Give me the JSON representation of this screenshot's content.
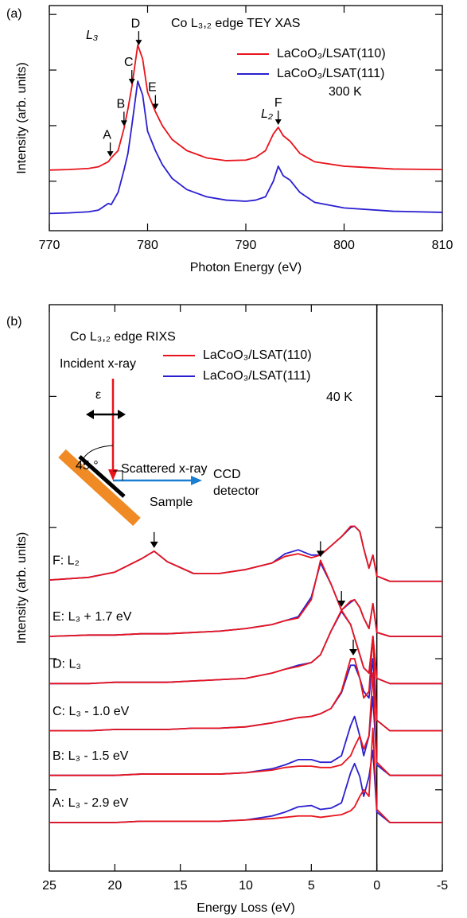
{
  "chart_data": [
    {
      "type": "line",
      "panel_label": "(a)",
      "title": "Co L₃,₂ edge TEY XAS",
      "xlabel": "Photon Energy (eV)",
      "ylabel": "Intensity (arb. units)",
      "note": "300 K",
      "edge_labels": [
        "L₃",
        "L₂"
      ],
      "xlim": [
        770,
        810
      ],
      "xticks": [
        770,
        780,
        790,
        800,
        810
      ],
      "ylim": [
        0.11,
        4.16
      ],
      "yticks": [
        1,
        2,
        3,
        4
      ],
      "x": [
        770,
        772,
        774,
        775,
        776,
        776.3,
        777,
        777.6,
        778,
        778.4,
        779,
        779.5,
        780,
        780.8,
        781.5,
        782.5,
        784,
        786,
        788,
        790,
        791,
        792,
        792.8,
        793.3,
        793.8,
        794.5,
        795.5,
        797,
        800,
        805,
        810
      ],
      "series": [
        {
          "name": "LaCoO₃/LSAT(110)",
          "color": "#e8141c",
          "values": [
            1.2,
            1.21,
            1.23,
            1.26,
            1.35,
            1.42,
            1.55,
            1.95,
            2.3,
            2.7,
            3.45,
            3.2,
            2.6,
            2.25,
            2.0,
            1.75,
            1.55,
            1.42,
            1.37,
            1.38,
            1.43,
            1.55,
            1.85,
            1.97,
            1.82,
            1.72,
            1.5,
            1.35,
            1.27,
            1.22,
            1.21
          ]
        },
        {
          "name": "LaCoO₃/LSAT(111)",
          "color": "#2a1fd0",
          "values": [
            0.42,
            0.43,
            0.45,
            0.48,
            0.6,
            0.58,
            0.8,
            1.2,
            1.5,
            2.0,
            2.8,
            2.55,
            1.9,
            1.55,
            1.3,
            1.05,
            0.85,
            0.72,
            0.66,
            0.64,
            0.66,
            0.72,
            1.0,
            1.27,
            1.1,
            1.02,
            0.8,
            0.62,
            0.52,
            0.46,
            0.44
          ]
        }
      ],
      "annotations": [
        {
          "text": "A",
          "x": 776.2
        },
        {
          "text": "B",
          "x": 777.6
        },
        {
          "text": "C",
          "x": 778.4
        },
        {
          "text": "D",
          "x": 779.1
        },
        {
          "text": "E",
          "x": 780.8
        },
        {
          "text": "F",
          "x": 793.3
        }
      ]
    },
    {
      "type": "line",
      "panel_label": "(b)",
      "title": "Co L₃,₂ edge RIXS",
      "xlabel": "Energy Loss (eV)",
      "ylabel": "Intensity (arb. units)",
      "note": "40 K",
      "inset": {
        "incident": "Incident x-ray",
        "polarization": "ε",
        "angle": "45 °",
        "scattered": "Scattered x-ray",
        "detector": [
          "CCD",
          "detector"
        ],
        "sample": "Sample"
      },
      "xlim": [
        25,
        -5
      ],
      "xticks": [
        25,
        20,
        15,
        10,
        5,
        0,
        -5
      ],
      "ylim": [
        0.38,
        4.7
      ],
      "yticks": [
        1,
        2,
        3,
        4
      ],
      "vline": 0,
      "x": [
        25,
        22,
        20,
        18,
        17,
        16,
        14,
        12,
        10,
        8,
        7,
        6,
        5,
        4.3,
        3.5,
        2.7,
        2,
        1.7,
        1.3,
        1,
        0.6,
        0.3,
        0,
        -1,
        -5
      ],
      "spectrum_labels": [
        "F: L₂",
        "E: L₃ + 1.7 eV",
        "D: L₃",
        "C: L₃ - 1.0 eV",
        "B: L₃ - 1.5 eV",
        "A: L₃ - 2.9 eV"
      ],
      "peak_arrows": [
        17,
        4.3,
        2.7,
        1.8,
        null,
        null
      ],
      "series": [
        {
          "name": "LaCoO₃/LSAT(110)",
          "color": "#e8141c",
          "spectra": [
            [
              2.6,
              2.62,
              2.66,
              2.76,
              2.82,
              2.74,
              2.65,
              2.65,
              2.68,
              2.73,
              2.78,
              2.8,
              2.77,
              2.79,
              2.86,
              2.93,
              3.01,
              3.01,
              2.97,
              2.84,
              2.69,
              2.79,
              2.63,
              2.59,
              2.59
            ],
            [
              2.17,
              2.18,
              2.18,
              2.19,
              2.19,
              2.19,
              2.2,
              2.21,
              2.23,
              2.26,
              2.29,
              2.31,
              2.45,
              2.75,
              2.57,
              2.37,
              2.44,
              2.45,
              2.39,
              2.31,
              2.23,
              2.42,
              2.2,
              2.17,
              2.17
            ],
            [
              1.81,
              1.81,
              1.82,
              1.82,
              1.82,
              1.82,
              1.83,
              1.84,
              1.85,
              1.89,
              1.92,
              1.94,
              1.97,
              2.03,
              2.21,
              2.37,
              2.26,
              2.16,
              2.03,
              1.93,
              1.89,
              2.17,
              1.85,
              1.81,
              1.81
            ],
            [
              1.45,
              1.45,
              1.46,
              1.46,
              1.46,
              1.46,
              1.47,
              1.47,
              1.48,
              1.51,
              1.53,
              1.55,
              1.56,
              1.58,
              1.62,
              1.75,
              2.0,
              2.0,
              1.85,
              1.7,
              1.75,
              2.17,
              1.53,
              1.45,
              1.45
            ],
            [
              1.11,
              1.11,
              1.11,
              1.12,
              1.12,
              1.12,
              1.12,
              1.12,
              1.13,
              1.15,
              1.17,
              1.18,
              1.18,
              1.17,
              1.17,
              1.19,
              1.26,
              1.33,
              1.41,
              1.31,
              1.41,
              1.89,
              1.21,
              1.11,
              1.11
            ],
            [
              0.75,
              0.75,
              0.75,
              0.76,
              0.76,
              0.76,
              0.76,
              0.76,
              0.77,
              0.78,
              0.79,
              0.8,
              0.8,
              0.79,
              0.8,
              0.81,
              0.84,
              0.87,
              0.95,
              1.0,
              0.95,
              1.47,
              0.85,
              0.75,
              0.75
            ]
          ]
        },
        {
          "name": "LaCoO₃/LSAT(111)",
          "color": "#2a1fd0",
          "spectra": [
            [
              2.6,
              2.62,
              2.66,
              2.76,
              2.82,
              2.74,
              2.65,
              2.65,
              2.68,
              2.73,
              2.8,
              2.83,
              2.79,
              2.79,
              2.86,
              2.93,
              3.0,
              3.01,
              2.97,
              2.84,
              2.69,
              2.79,
              2.63,
              2.59,
              2.59
            ],
            [
              2.17,
              2.18,
              2.18,
              2.19,
              2.19,
              2.19,
              2.2,
              2.21,
              2.23,
              2.26,
              2.29,
              2.32,
              2.47,
              2.73,
              2.57,
              2.37,
              2.43,
              2.45,
              2.39,
              2.31,
              2.23,
              2.42,
              2.2,
              2.17,
              2.17
            ],
            [
              1.81,
              1.81,
              1.82,
              1.82,
              1.82,
              1.82,
              1.83,
              1.84,
              1.85,
              1.89,
              1.92,
              1.95,
              1.97,
              2.03,
              2.21,
              2.36,
              2.26,
              2.16,
              2.03,
              1.93,
              1.89,
              2.17,
              1.85,
              1.81,
              1.81
            ],
            [
              1.45,
              1.45,
              1.46,
              1.46,
              1.46,
              1.46,
              1.47,
              1.47,
              1.48,
              1.51,
              1.53,
              1.55,
              1.56,
              1.58,
              1.62,
              1.74,
              1.95,
              1.95,
              1.85,
              1.75,
              1.7,
              2.0,
              1.53,
              1.45,
              1.45
            ],
            [
              1.11,
              1.11,
              1.11,
              1.12,
              1.12,
              1.12,
              1.12,
              1.12,
              1.13,
              1.16,
              1.19,
              1.23,
              1.23,
              1.21,
              1.21,
              1.26,
              1.49,
              1.56,
              1.41,
              1.26,
              1.41,
              1.71,
              1.19,
              1.11,
              1.11
            ],
            [
              0.75,
              0.75,
              0.75,
              0.76,
              0.76,
              0.76,
              0.76,
              0.76,
              0.77,
              0.8,
              0.83,
              0.87,
              0.88,
              0.85,
              0.86,
              0.9,
              1.13,
              1.2,
              1.1,
              0.95,
              1.1,
              1.3,
              0.83,
              0.75,
              0.75
            ]
          ]
        }
      ]
    }
  ]
}
